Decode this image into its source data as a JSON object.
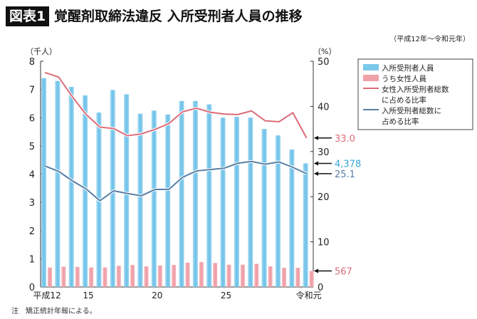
{
  "header": {
    "badge": "図表1",
    "title": "覚醒剤取締法違反 入所受刑者人員の推移",
    "period": "（平成12年～令和元年）"
  },
  "note": "注　矯正統計年報による。",
  "chart_data": {
    "type": "bar+line",
    "title": "覚醒剤取締法違反 入所受刑者人員の推移",
    "categories": [
      "平成12",
      "13",
      "14",
      "15",
      "16",
      "17",
      "18",
      "19",
      "20",
      "21",
      "22",
      "23",
      "24",
      "25",
      "26",
      "27",
      "28",
      "29",
      "30",
      "令和元"
    ],
    "x_tick_labels": [
      "平成12",
      "15",
      "20",
      "25",
      "令和元"
    ],
    "left_axis": {
      "unit": "（千人）",
      "range": [
        0,
        8
      ],
      "ticks": [
        "0",
        "1",
        "2",
        "3",
        "4",
        "5",
        "6",
        "7",
        "8"
      ]
    },
    "right_axis": {
      "unit": "（%）",
      "range": [
        0,
        50
      ],
      "ticks": [
        "0",
        "10",
        "20",
        "30",
        "40",
        "50"
      ]
    },
    "series": [
      {
        "name": "入所受刑者人員",
        "type": "bar",
        "axis": "left",
        "color": "#7cc8ea",
        "values": [
          7.4,
          7.3,
          7.09,
          6.79,
          6.18,
          6.98,
          6.83,
          6.14,
          6.25,
          6.11,
          6.59,
          6.59,
          6.47,
          6.0,
          6.03,
          6.0,
          5.6,
          5.37,
          4.87,
          4.378
        ]
      },
      {
        "name": "うち女性人員",
        "type": "bar",
        "axis": "left",
        "color": "#f0a0a8",
        "values": [
          0.69,
          0.72,
          0.71,
          0.69,
          0.69,
          0.75,
          0.78,
          0.73,
          0.76,
          0.78,
          0.86,
          0.88,
          0.85,
          0.79,
          0.79,
          0.82,
          0.73,
          0.68,
          0.68,
          0.567
        ]
      },
      {
        "name": "女性入所受刑者総数に占める比率",
        "type": "line",
        "axis": "right",
        "color": "#dc6b78",
        "values": [
          47.5,
          46.5,
          42.1,
          38.2,
          35.4,
          35.1,
          33.5,
          33.9,
          34.9,
          36.2,
          38.8,
          39.6,
          38.7,
          38.3,
          38.2,
          39.0,
          36.8,
          36.6,
          38.6,
          33.0
        ]
      },
      {
        "name": "入所受刑者総数に占める比率",
        "type": "line",
        "axis": "right",
        "color": "#5a7fa6",
        "values": [
          26.8,
          25.6,
          23.5,
          21.7,
          19.1,
          21.3,
          20.7,
          20.2,
          21.6,
          21.6,
          24.3,
          25.7,
          26.0,
          26.3,
          27.4,
          27.8,
          27.2,
          27.7,
          26.5,
          25.1
        ]
      }
    ],
    "legend": {
      "placement": "top-right",
      "items": [
        {
          "label": "入所受刑者人員",
          "color": "#7cc8ea"
        },
        {
          "label": "うち女性人員",
          "color": "#f0a0a8"
        },
        {
          "label": [
            "女性入所受刑者総数",
            "に占める比率"
          ],
          "color": "#dc6b78"
        },
        {
          "label": [
            "入所受刑者総数に",
            "占める比率"
          ],
          "color": "#5a7fa6"
        }
      ]
    },
    "annotations": [
      {
        "text": "33.0",
        "color": "#dc6b78",
        "series": 2
      },
      {
        "text": "4,378",
        "color": "#3aa5d8",
        "series": 0
      },
      {
        "text": "25.1",
        "color": "#5a7fa6",
        "series": 3
      },
      {
        "text": "567",
        "color": "#dc6b78",
        "series": 1
      }
    ],
    "grid": false
  }
}
